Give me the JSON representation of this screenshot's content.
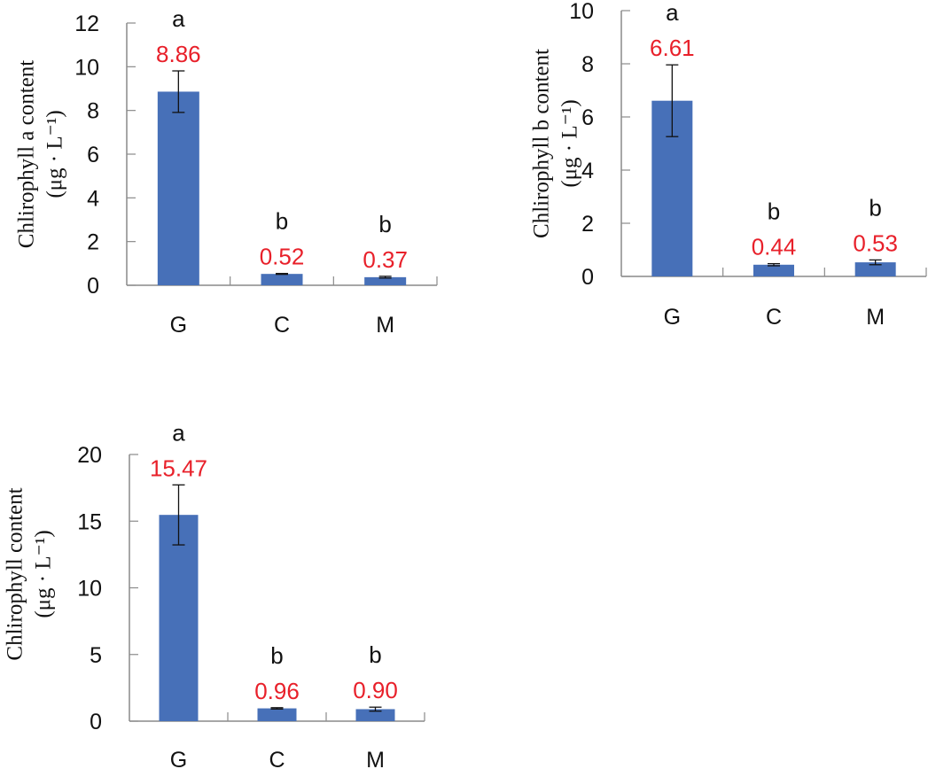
{
  "colors": {
    "bar": "#4770b8",
    "value_label": "#e8202a",
    "axis": "#8a8a8a",
    "error_bar": "#111111"
  },
  "chart_data": [
    {
      "type": "bar",
      "categories": [
        "G",
        "C",
        "M"
      ],
      "values": [
        8.86,
        0.52,
        0.37
      ],
      "errors": [
        0.95,
        0.02,
        0.04
      ],
      "value_labels": [
        "8.86",
        "0.52",
        "0.37"
      ],
      "significance": [
        "a",
        "b",
        "b"
      ],
      "ylabel": "Chlirophyll a content",
      "yunit": "(μg · L⁻¹)",
      "ylim": [
        0,
        12
      ],
      "yticks": [
        0,
        2,
        4,
        6,
        8,
        10,
        12
      ],
      "grid": false
    },
    {
      "type": "bar",
      "categories": [
        "G",
        "C",
        "M"
      ],
      "values": [
        6.61,
        0.44,
        0.53
      ],
      "errors": [
        1.35,
        0.04,
        0.09
      ],
      "value_labels": [
        "6.61",
        "0.44",
        "0.53"
      ],
      "significance": [
        "a",
        "b",
        "b"
      ],
      "ylabel": "Chlirophyll b content",
      "yunit": "(μg · L⁻¹)",
      "ylim": [
        0,
        10
      ],
      "yticks": [
        0,
        2,
        4,
        6,
        8,
        10
      ],
      "grid": false
    },
    {
      "type": "bar",
      "categories": [
        "G",
        "C",
        "M"
      ],
      "values": [
        15.47,
        0.96,
        0.9
      ],
      "errors": [
        2.25,
        0.05,
        0.15
      ],
      "value_labels": [
        "15.47",
        "0.96",
        "0.90"
      ],
      "significance": [
        "a",
        "b",
        "b"
      ],
      "ylabel": "Chlirophyll content",
      "yunit": "(μg · L⁻¹)",
      "ylim": [
        0,
        20
      ],
      "yticks": [
        0,
        5,
        10,
        15,
        20
      ],
      "grid": false
    }
  ]
}
